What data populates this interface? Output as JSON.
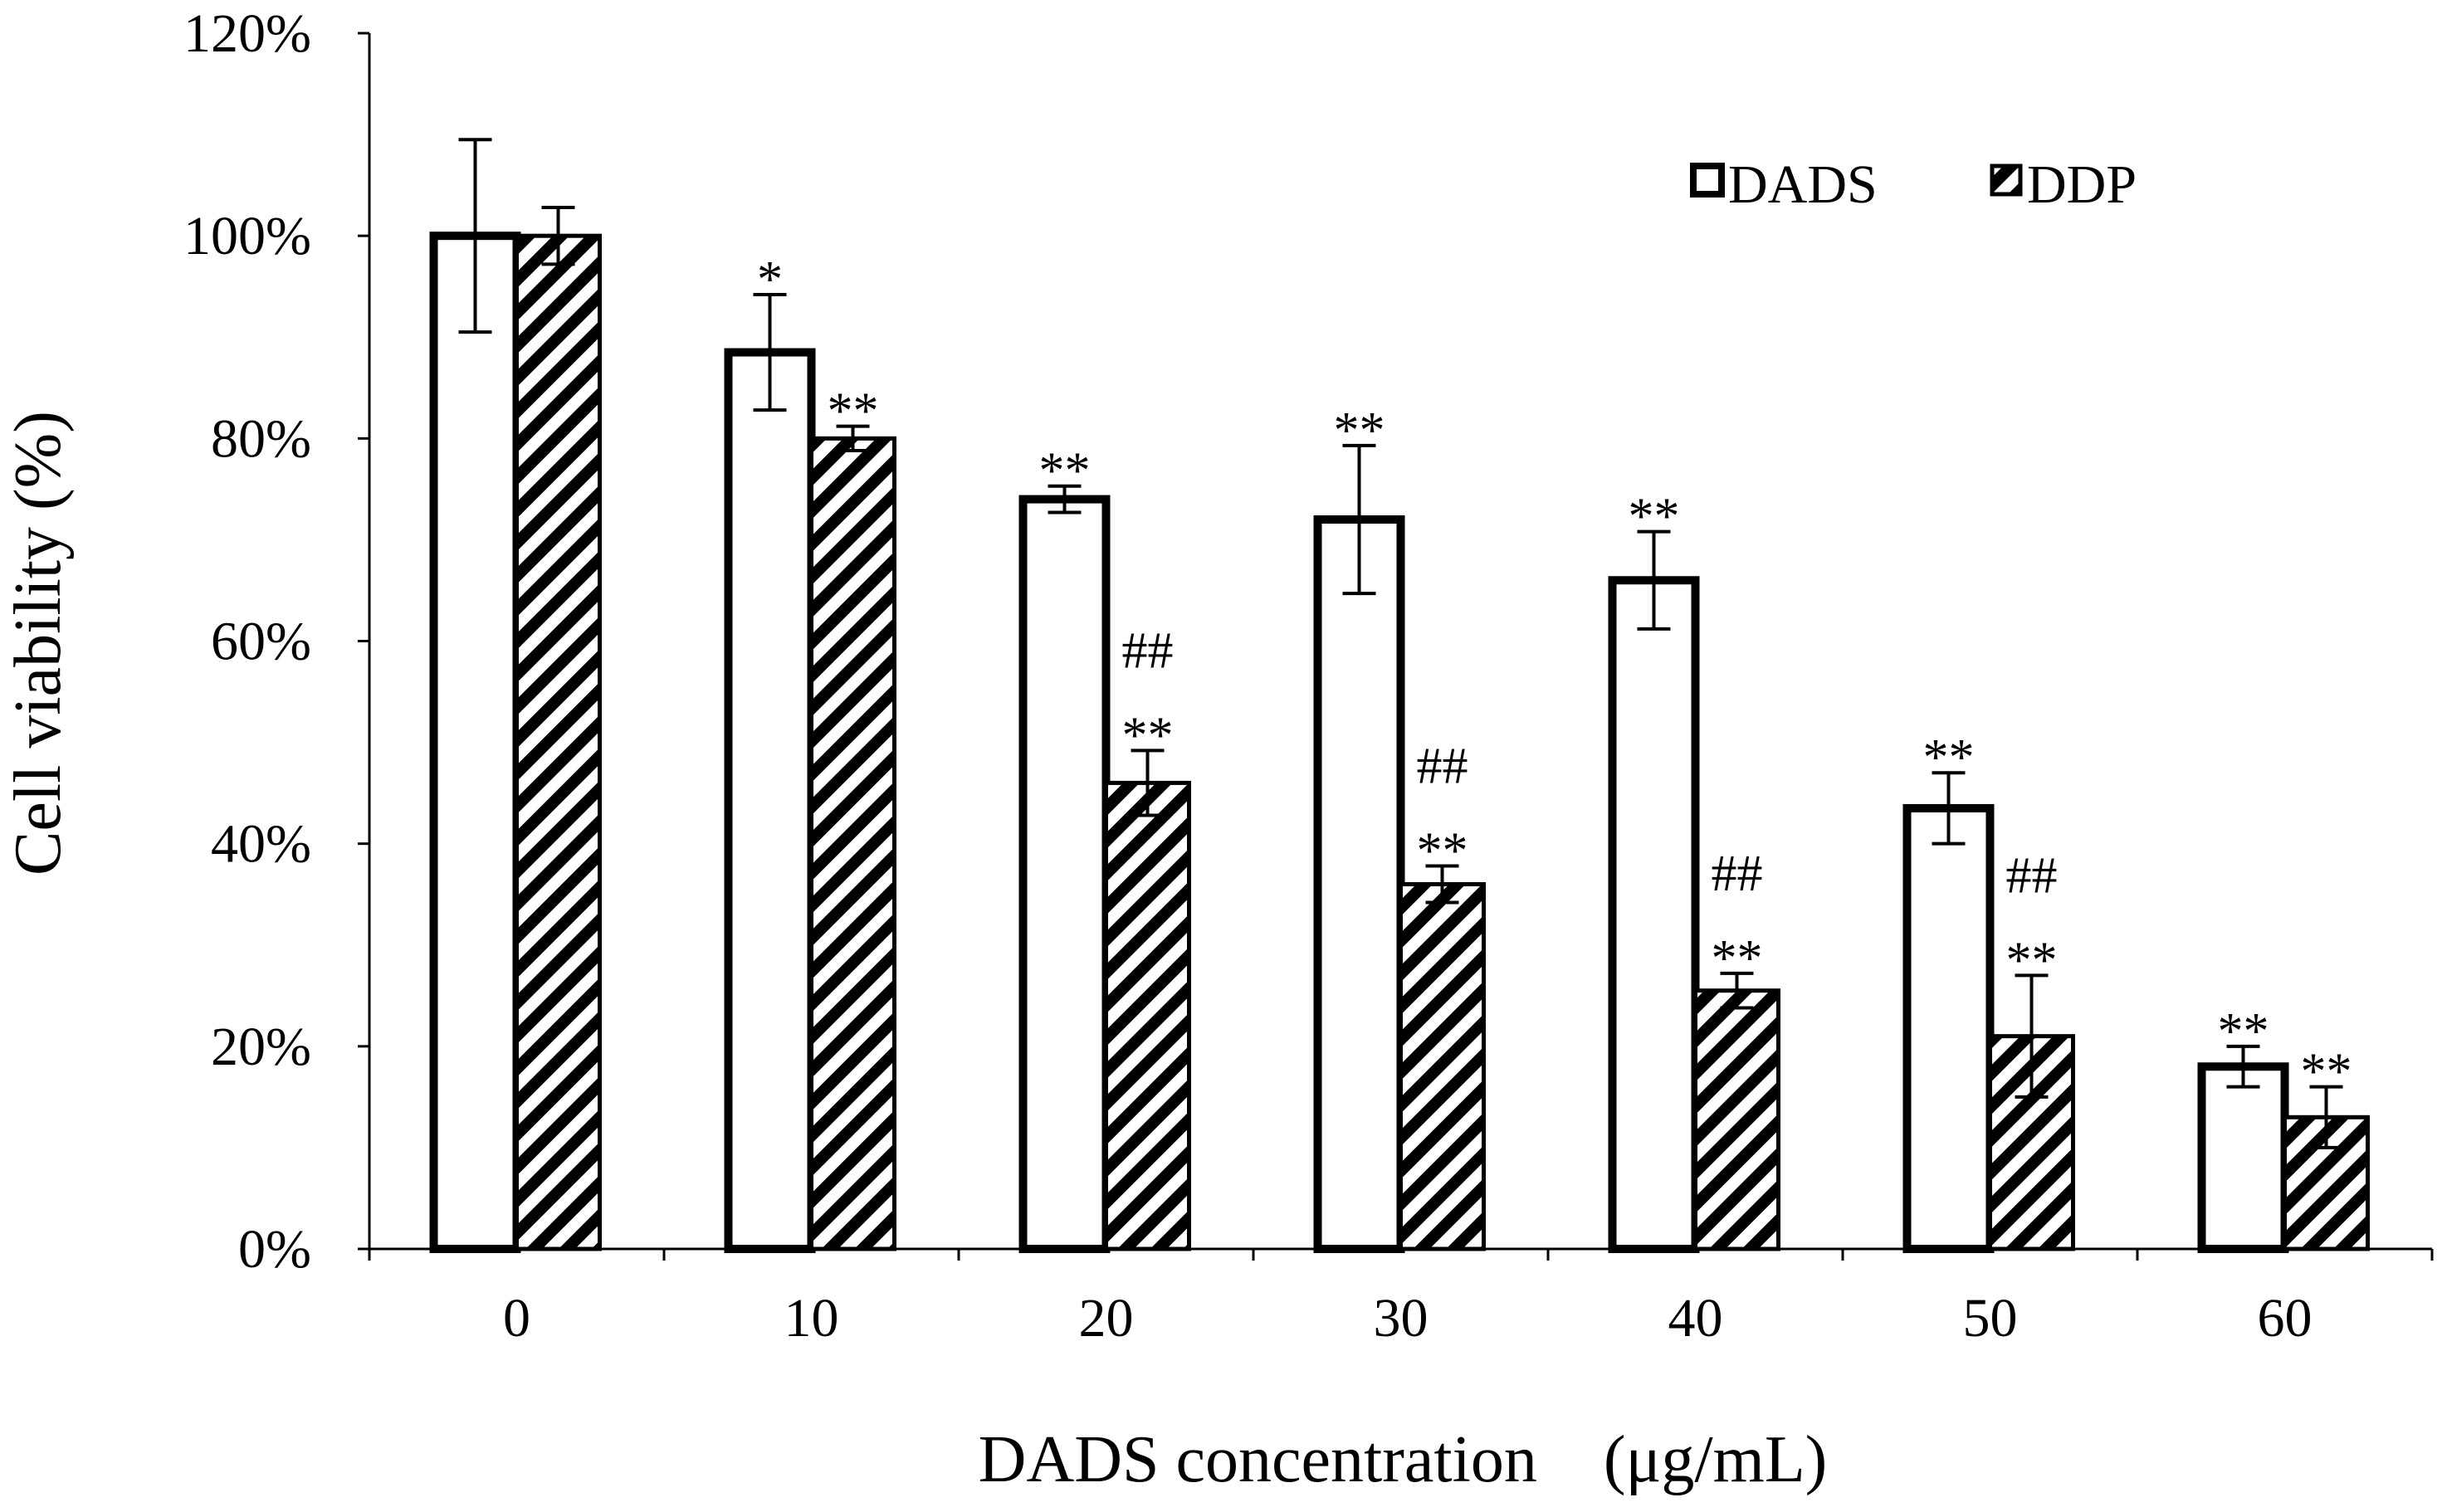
{
  "chart_data": {
    "type": "bar",
    "title": "",
    "xlabel": "DADS concentration　(μg/mL)",
    "ylabel": "Cell viability (%)",
    "ylim": [
      0,
      120
    ],
    "yticks": [
      0,
      20,
      40,
      60,
      80,
      100,
      120
    ],
    "ytick_labels": [
      "0%",
      "20%",
      "40%",
      "60%",
      "80%",
      "100%",
      "120%"
    ],
    "categories": [
      "0",
      "10",
      "20",
      "30",
      "40",
      "50",
      "60"
    ],
    "legend_position": "top-right",
    "series": [
      {
        "name": "DADS",
        "pattern": "open",
        "values": [
          100,
          88.5,
          74,
          72,
          66,
          43.5,
          18
        ],
        "errors": [
          9.5,
          5.7,
          1.3,
          7.3,
          4.8,
          3.5,
          2.0
        ],
        "annotations": [
          "",
          "*",
          "**",
          "**",
          "**",
          "**",
          "**"
        ]
      },
      {
        "name": "DDP",
        "pattern": "diagonal-hatch",
        "values": [
          100,
          80,
          46,
          36,
          25.5,
          21,
          13
        ],
        "errors": [
          2.8,
          1.2,
          3.2,
          1.8,
          1.7,
          6.0,
          3.0
        ],
        "annotations": [
          "",
          "**",
          "##\n**",
          "##\n**",
          "##\n**",
          "##\n**",
          "**"
        ]
      }
    ]
  },
  "colors": {
    "bar_stroke": "#000000",
    "bar_fill": "#ffffff",
    "axis": "#000000"
  }
}
